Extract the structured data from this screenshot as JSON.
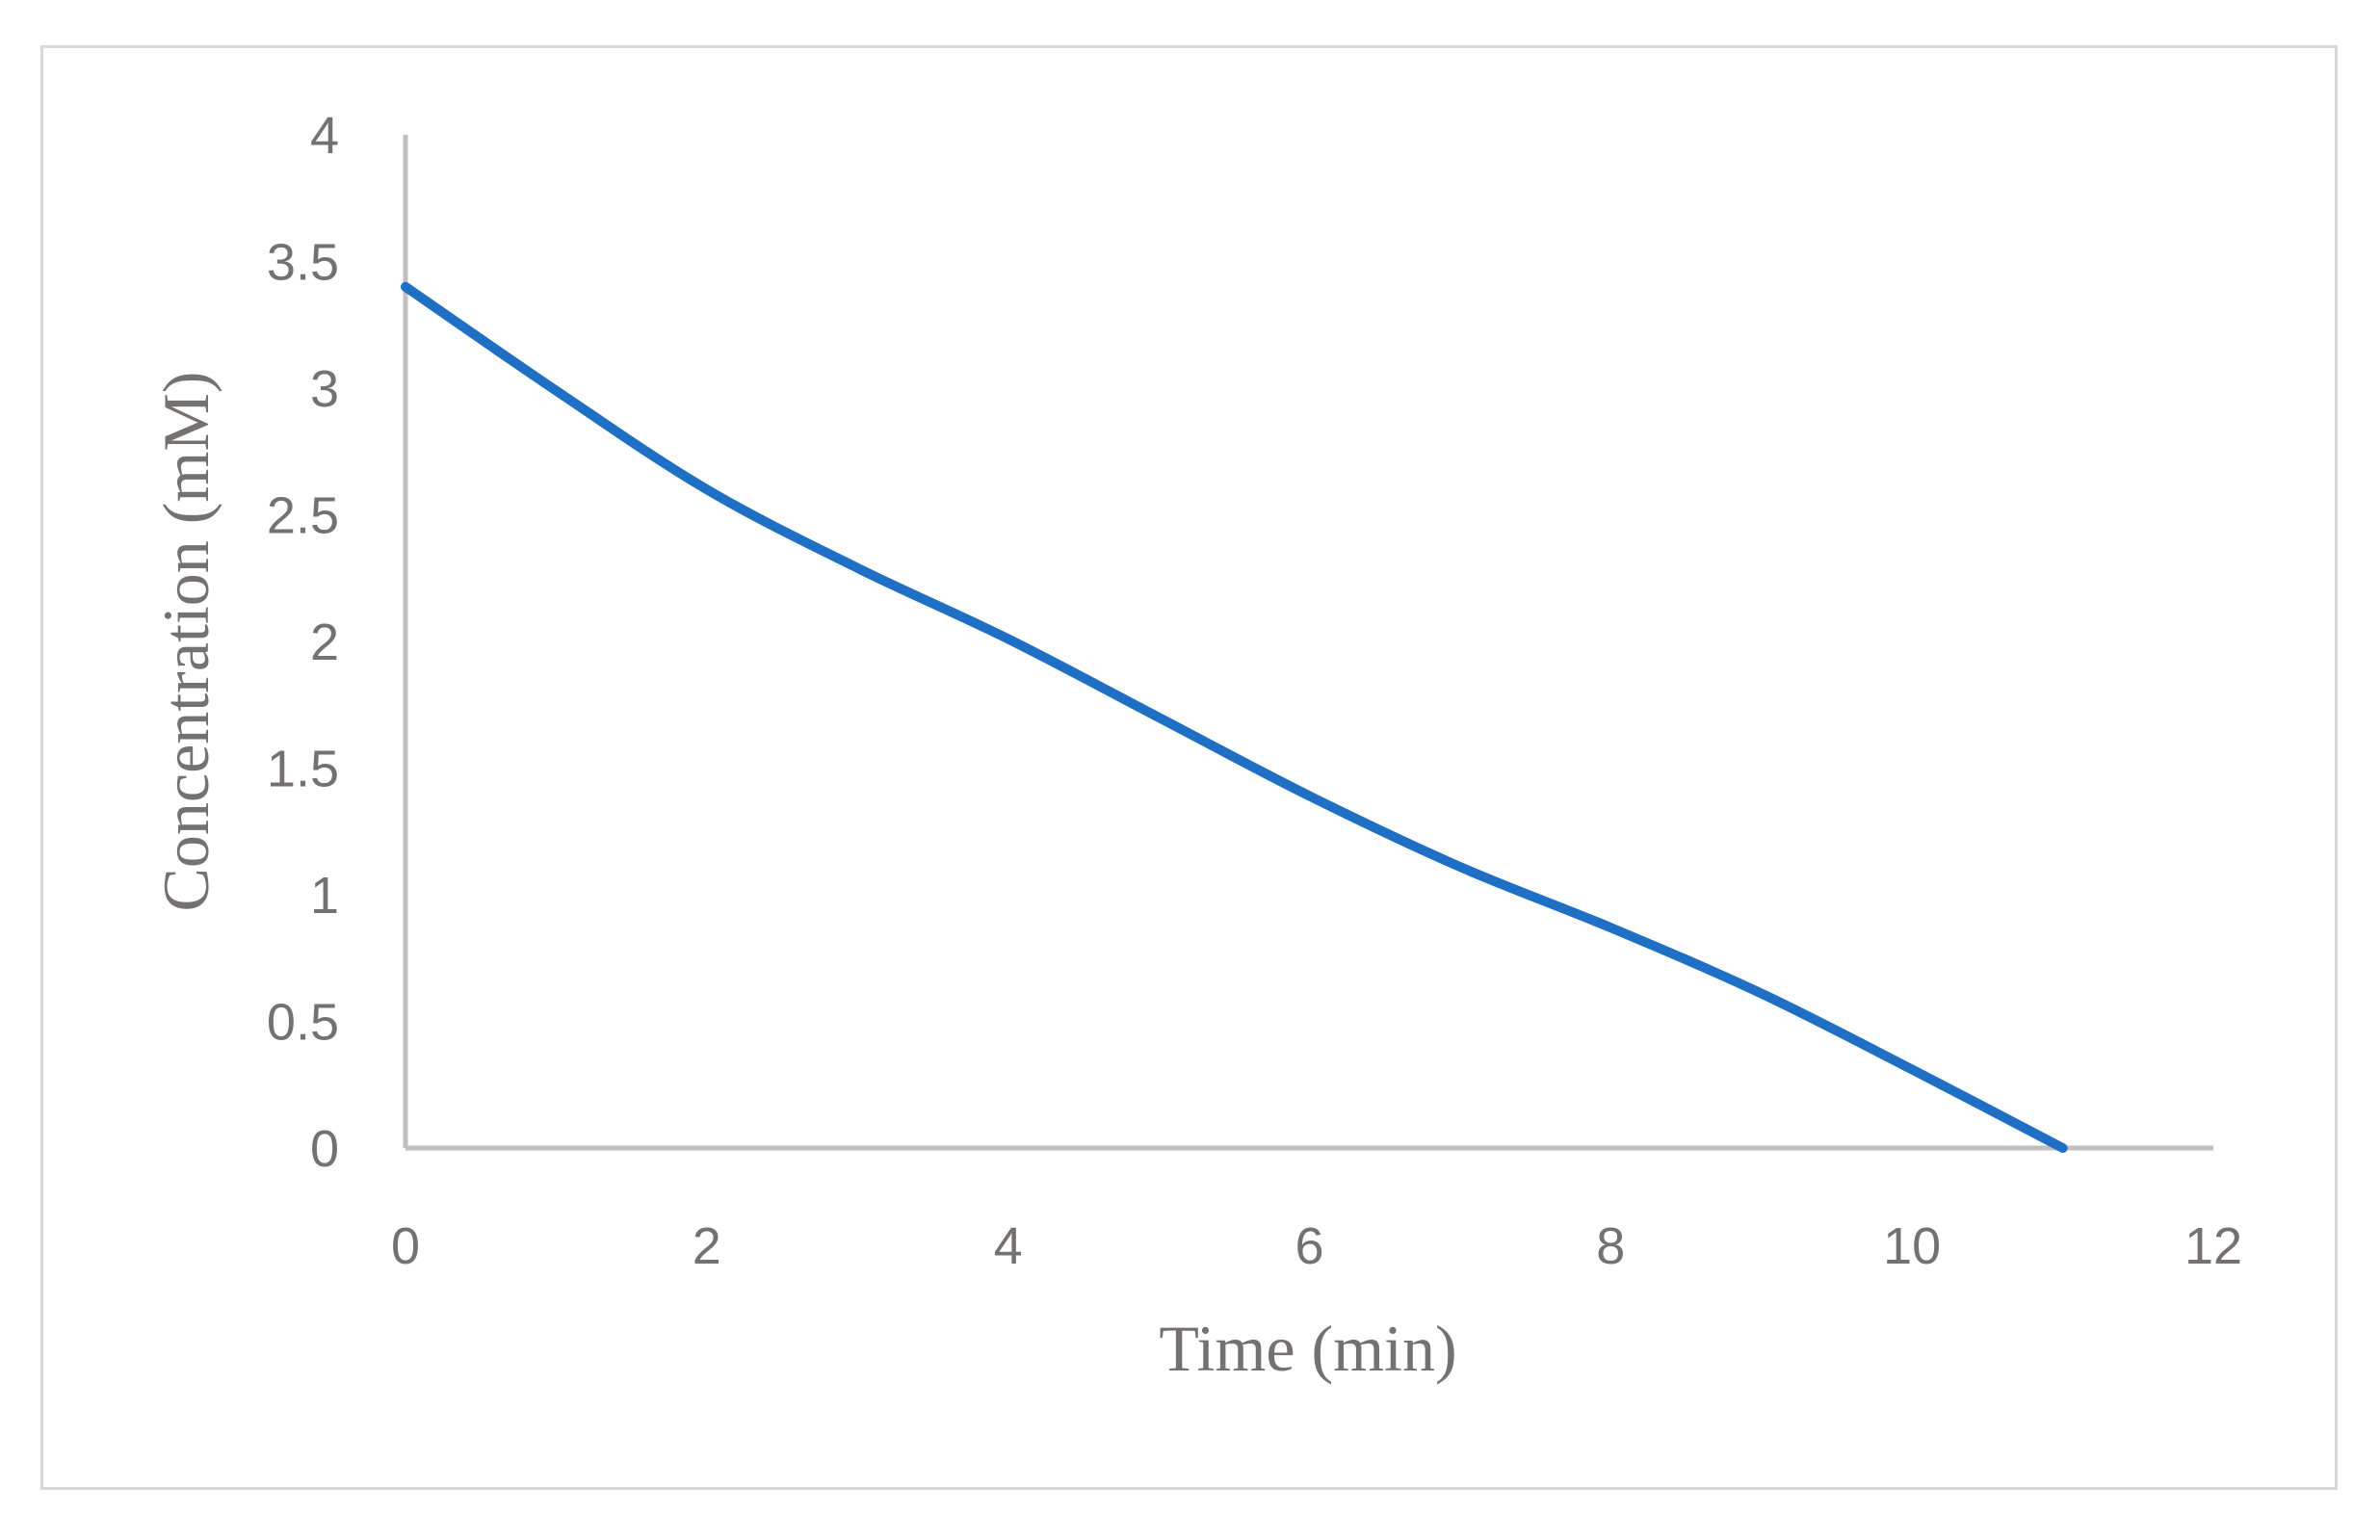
{
  "chart_data": {
    "type": "line",
    "xlabel": "Time (min)",
    "ylabel": "Concentration (mM)",
    "xlim": [
      0,
      12
    ],
    "ylim": [
      0,
      4
    ],
    "xticks": [
      "0",
      "2",
      "4",
      "6",
      "8",
      "10",
      "12"
    ],
    "yticks": [
      "0",
      "0.5",
      "1",
      "1.5",
      "2",
      "2.5",
      "3",
      "3.5",
      "4"
    ],
    "grid": false,
    "series": [
      {
        "color": "#1f6fc5",
        "x": [
          0,
          1,
          2,
          3,
          4,
          5,
          6,
          7,
          8,
          9,
          10,
          11
        ],
        "y": [
          3.4,
          2.99,
          2.6,
          2.29,
          2.01,
          1.7,
          1.39,
          1.11,
          0.87,
          0.61,
          0.31,
          0.0
        ]
      }
    ]
  }
}
